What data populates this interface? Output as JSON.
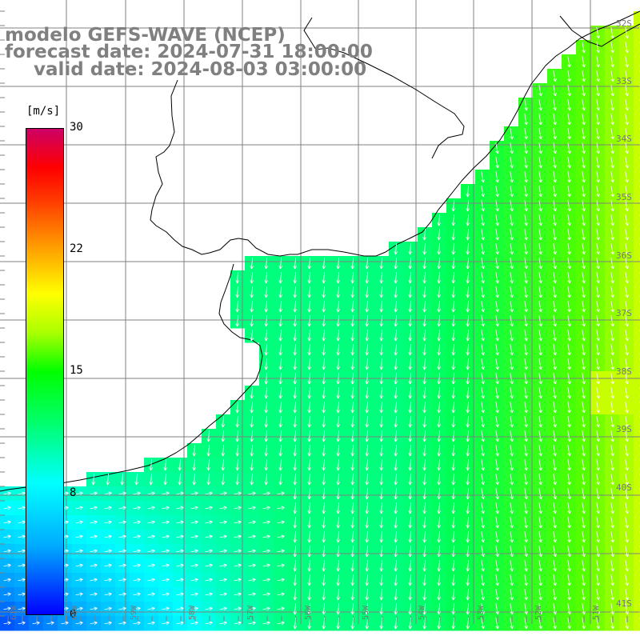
{
  "title": {
    "line1": "modelo GEFS-WAVE (NCEP)",
    "line2": "forecast date: 2024-07-31 18:00:00",
    "line3": "valid date: 2024-08-03 03:00:00"
  },
  "colorbar": {
    "unit": "[m/s]",
    "ticks": [
      "30",
      "22",
      "15",
      "8",
      "0"
    ]
  },
  "map_axes": {
    "lat_labels": [
      "32S",
      "33S",
      "34S",
      "35S",
      "36S",
      "37S",
      "38S",
      "39S",
      "40S",
      "41S"
    ],
    "lon_labels": [
      "61W",
      "60W",
      "59W",
      "58W",
      "57W",
      "56W",
      "55W",
      "54W",
      "53W",
      "52W",
      "51W"
    ]
  },
  "colors": {
    "land": "#ffffff",
    "grid": "#808080",
    "coast": "#000000",
    "arrows": "#ffffff",
    "title_text": "#808080"
  },
  "map_features": [
    "wind-speed-shading",
    "wind-vectors",
    "coastline",
    "lat-lon-grid"
  ]
}
